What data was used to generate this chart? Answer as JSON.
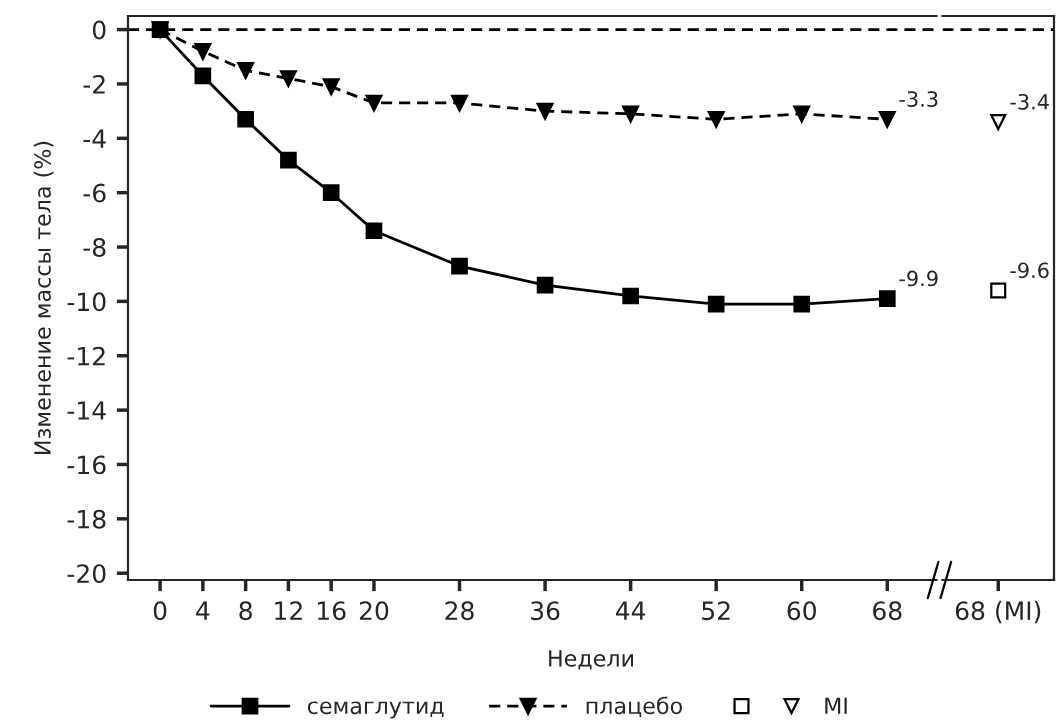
{
  "chart_data": [
    {
      "type": "line",
      "xlabel": "Недели",
      "ylabel": "Изменение массы тела (%)",
      "xlim": [
        -3,
        72.6
      ],
      "ylim": [
        -20.25,
        0.5
      ],
      "xticks": [
        0,
        4,
        8,
        12,
        16,
        20,
        28,
        36,
        44,
        52,
        60,
        68
      ],
      "yticks": [
        0,
        -2,
        -4,
        -6,
        -8,
        -10,
        -12,
        -14,
        -16,
        -18,
        -20
      ],
      "ref_lines": [
        {
          "axis": "y",
          "value": 0,
          "label": null,
          "color": "#000000",
          "line_style": "dashed"
        }
      ],
      "legend": "bottom",
      "series": [
        {
          "name": "семаглутид",
          "color": "#000000",
          "marker": "square",
          "line_style": "solid",
          "x": [
            0,
            4,
            8,
            12,
            16,
            20,
            28,
            36,
            44,
            52,
            60,
            68
          ],
          "values": [
            0,
            -1.7,
            -3.3,
            -4.8,
            -6.0,
            -7.4,
            -8.7,
            -9.4,
            -9.8,
            -10.1,
            -10.1,
            -9.9
          ],
          "value_labels": [
            null,
            null,
            null,
            null,
            null,
            null,
            null,
            null,
            null,
            null,
            null,
            "-9.9"
          ]
        },
        {
          "name": "плацебо",
          "color": "#000000",
          "marker": "triangle",
          "line_style": "dashed",
          "x": [
            0,
            4,
            8,
            12,
            16,
            20,
            28,
            36,
            44,
            52,
            60,
            68
          ],
          "values": [
            0,
            -0.8,
            -1.5,
            -1.8,
            -2.1,
            -2.7,
            -2.7,
            -3.0,
            -3.1,
            -3.3,
            -3.1,
            -3.3
          ],
          "value_labels": [
            null,
            null,
            null,
            null,
            null,
            null,
            null,
            null,
            null,
            null,
            null,
            "-3.3"
          ]
        }
      ]
    },
    {
      "type": "scatter",
      "categories": [
        "68 (MI)"
      ],
      "ylim": [
        -20.25,
        0.5
      ],
      "yticks": [
        0,
        -2,
        -4,
        -6,
        -8,
        -10,
        -12,
        -14,
        -16,
        -18,
        -20
      ],
      "tick_labels": "x",
      "ref_lines": [
        {
          "axis": "y",
          "value": 0,
          "label": null,
          "color": "#000000",
          "line_style": "dashed"
        }
      ],
      "legend": "bottom",
      "series": [
        {
          "color": "#000000",
          "marker": "square",
          "values": [
            -9.6
          ],
          "value_labels": [
            "-9.6"
          ]
        },
        {
          "name": "MI",
          "color": "#000000",
          "marker": "triangle",
          "values": [
            -3.4
          ],
          "value_labels": [
            "-3.4"
          ]
        }
      ]
    }
  ]
}
